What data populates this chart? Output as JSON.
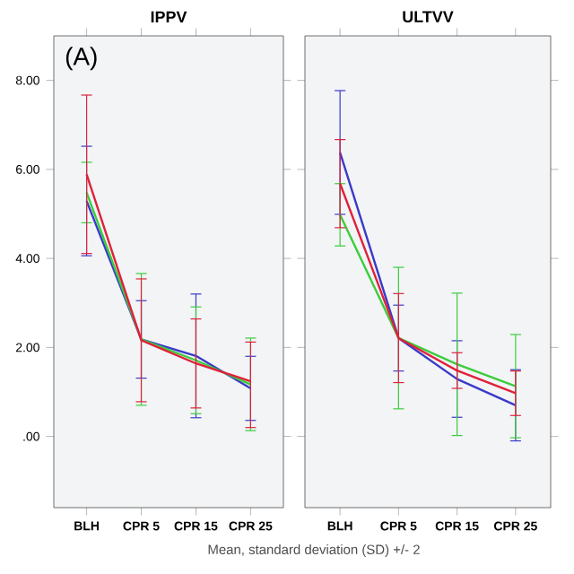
{
  "chart_data": [
    {
      "type": "line",
      "title": "IPPV",
      "categories": [
        "BLH",
        "CPR 5",
        "CPR 15",
        "CPR 25"
      ],
      "series": [
        {
          "color": "#3a3ac8",
          "values": [
            5.29,
            2.18,
            1.81,
            1.08
          ],
          "errors": [
            1.23,
            0.87,
            1.39,
            0.72
          ]
        },
        {
          "color": "#3ccc3c",
          "values": [
            5.48,
            2.18,
            1.71,
            1.17
          ],
          "errors": [
            0.68,
            1.48,
            1.2,
            1.04
          ]
        },
        {
          "color": "#e0203a",
          "values": [
            5.89,
            2.16,
            1.64,
            1.24
          ],
          "errors": [
            1.78,
            1.38,
            1.0,
            [
              0.2,
              2.12
            ]
          ]
        }
      ],
      "ylim": [
        -1.6,
        9.0
      ],
      "yticks": [
        {
          "value": 0,
          "label": ".00"
        },
        {
          "value": 2,
          "label": "2.00"
        },
        {
          "value": 4,
          "label": "4.00"
        },
        {
          "value": 6,
          "label": "6.00"
        },
        {
          "value": 8,
          "label": "8.00"
        }
      ],
      "annotations": [
        "(A)",
        "Mean, standard deviation (SD) +/- 2"
      ]
    },
    {
      "type": "line",
      "title": "ULTVV",
      "categories": [
        "BLH",
        "CPR 5",
        "CPR 15",
        "CPR 25"
      ],
      "series": [
        {
          "color": "#3a3ac8",
          "values": [
            6.38,
            2.21,
            1.29,
            0.7
          ],
          "errors": [
            1.39,
            0.74,
            0.86,
            0.8
          ]
        },
        {
          "color": "#3ccc3c",
          "values": [
            4.98,
            2.21,
            1.62,
            1.13
          ],
          "errors": [
            0.7,
            1.59,
            1.6,
            1.16
          ]
        },
        {
          "color": "#e0203a",
          "values": [
            5.68,
            2.21,
            1.48,
            0.97
          ],
          "errors": [
            0.99,
            1.0,
            0.4,
            0.5
          ]
        }
      ],
      "ylim": [
        -1.6,
        9.0
      ],
      "yticks": [
        0,
        2,
        4,
        6,
        8
      ],
      "tick_labels": "x"
    }
  ]
}
